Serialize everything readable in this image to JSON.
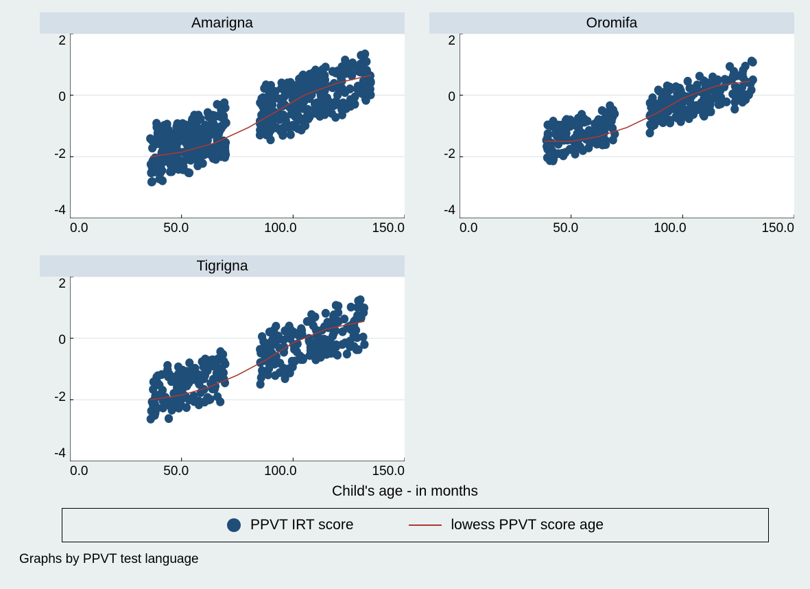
{
  "figure": {
    "background_color": "#eaf0f0",
    "title_bar_color": "#d5dfe8",
    "plot_background": "#ffffff",
    "grid_color": "#dde5e5",
    "axis_line_color": "#000000",
    "scatter_color": "#1f4e79",
    "lowess_color": "#a83a32",
    "marker_radius": 6,
    "lowess_width": 1.5,
    "font_family": "Arial",
    "title_fontsize": 21,
    "tick_fontsize": 19,
    "xlabel": "Child's age - in months",
    "footnote": "Graphs by PPVT test language",
    "legend": {
      "scatter_label": "PPVT IRT score",
      "lowess_label": "lowess PPVT score age"
    },
    "xlim": [
      0,
      150
    ],
    "ylim": [
      -4,
      2
    ],
    "xticks": [
      0,
      50,
      100,
      150
    ],
    "xtick_labels": [
      "0.0",
      "50.0",
      "100.0",
      "150.0"
    ],
    "yticks": [
      -4,
      -2,
      0,
      2
    ],
    "ytick_labels": [
      "-4",
      "-2",
      "0",
      "2"
    ],
    "panels": [
      {
        "title": "Amarigna",
        "scatter_seed": 11,
        "n_points": 520,
        "x_range": [
          36,
          135
        ],
        "y_base": [
          -2.0,
          0.6
        ],
        "y_spread": 1.05,
        "lowess": [
          [
            36,
            -2.0
          ],
          [
            50,
            -1.85
          ],
          [
            65,
            -1.55
          ],
          [
            80,
            -1.05
          ],
          [
            92,
            -0.55
          ],
          [
            105,
            0.0
          ],
          [
            120,
            0.4
          ],
          [
            135,
            0.65
          ]
        ]
      },
      {
        "title": "Oromifa",
        "scatter_seed": 22,
        "n_points": 300,
        "x_range": [
          38,
          132
        ],
        "y_base": [
          -1.55,
          0.45
        ],
        "y_spread": 0.8,
        "lowess": [
          [
            38,
            -1.5
          ],
          [
            50,
            -1.5
          ],
          [
            62,
            -1.35
          ],
          [
            75,
            -1.05
          ],
          [
            88,
            -0.6
          ],
          [
            100,
            -0.1
          ],
          [
            115,
            0.3
          ],
          [
            130,
            0.45
          ]
        ]
      },
      {
        "title": "Tigrigna",
        "scatter_seed": 33,
        "n_points": 330,
        "x_range": [
          36,
          132
        ],
        "y_base": [
          -2.0,
          0.5
        ],
        "y_spread": 0.95,
        "lowess": [
          [
            36,
            -2.0
          ],
          [
            50,
            -1.85
          ],
          [
            62,
            -1.6
          ],
          [
            75,
            -1.2
          ],
          [
            88,
            -0.7
          ],
          [
            100,
            -0.15
          ],
          [
            115,
            0.3
          ],
          [
            132,
            0.55
          ]
        ]
      }
    ]
  }
}
